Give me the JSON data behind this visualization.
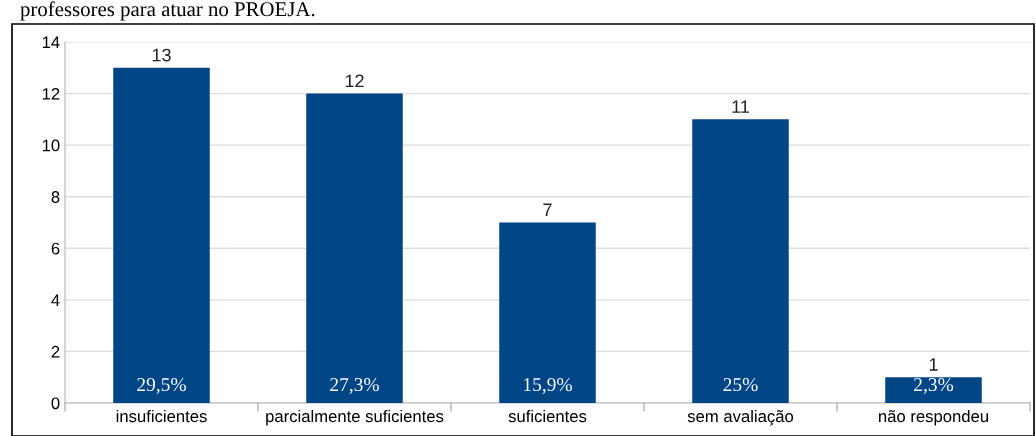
{
  "chart_data": {
    "type": "bar",
    "categories": [
      "insuficientes",
      "parcialmente suficientes",
      "suficientes",
      "sem avaliação",
      "não respondeu"
    ],
    "values": [
      13,
      12,
      7,
      11,
      1
    ],
    "color": "#004586",
    "ylim": [
      0,
      14
    ],
    "yticks": [
      0,
      2,
      4,
      6,
      8,
      10,
      12,
      14
    ],
    "grid": "y",
    "data_labels": true,
    "annotations": [
      "professores para atuar no PROEJA.",
      "29,5%",
      "27,3%",
      "15,9%",
      "25%",
      "2,3%"
    ]
  }
}
